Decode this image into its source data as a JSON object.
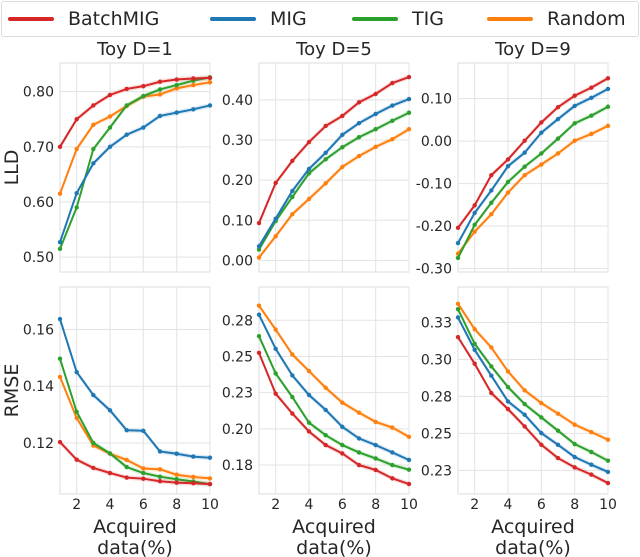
{
  "legend": {
    "placement": "top",
    "items": [
      {
        "label": "BatchMIG",
        "color": "#d62728"
      },
      {
        "label": "MIG",
        "color": "#1f77b4"
      },
      {
        "label": "TIG",
        "color": "#2ca02c"
      },
      {
        "label": "Random",
        "color": "#ff7f0e"
      }
    ]
  },
  "chart_data": [
    {
      "type": "line",
      "title": "Toy D=1",
      "ylabel": "LLD",
      "xlabel": "",
      "x": [
        1,
        2,
        3,
        4,
        5,
        6,
        7,
        8,
        9,
        10
      ],
      "xlim": [
        1,
        10
      ],
      "xticks": [
        2,
        4,
        6,
        8,
        10
      ],
      "xtick_labels": [],
      "ylim": [
        0.473,
        0.852
      ],
      "yticks": [
        0.5,
        0.6,
        0.7,
        0.8
      ],
      "ytick_labels": [
        "0.50",
        "0.60",
        "0.70",
        "0.80"
      ],
      "grid": true,
      "series": [
        {
          "name": "BatchMIG",
          "values": [
            0.7,
            0.75,
            0.775,
            0.794,
            0.805,
            0.81,
            0.818,
            0.822,
            0.824,
            0.825
          ]
        },
        {
          "name": "MIG",
          "values": [
            0.527,
            0.616,
            0.67,
            0.7,
            0.722,
            0.735,
            0.756,
            0.762,
            0.768,
            0.775
          ]
        },
        {
          "name": "TIG",
          "values": [
            0.515,
            0.59,
            0.696,
            0.735,
            0.775,
            0.792,
            0.804,
            0.812,
            0.82,
            0.826
          ]
        },
        {
          "name": "Random",
          "values": [
            0.615,
            0.696,
            0.74,
            0.755,
            0.774,
            0.791,
            0.795,
            0.806,
            0.812,
            0.817
          ]
        }
      ]
    },
    {
      "type": "line",
      "title": "Toy D=5",
      "ylabel": "",
      "xlabel": "",
      "x": [
        1,
        2,
        3,
        4,
        5,
        6,
        7,
        8,
        9,
        10
      ],
      "xlim": [
        1,
        10
      ],
      "xticks": [
        2,
        4,
        6,
        8,
        10
      ],
      "xtick_labels": [],
      "ylim": [
        -0.029,
        0.492
      ],
      "yticks": [
        0,
        0.1,
        0.2,
        0.3,
        0.4
      ],
      "ytick_labels": [
        "0.00",
        "0.10",
        "0.20",
        "0.30",
        "0.40"
      ],
      "grid": true,
      "series": [
        {
          "name": "BatchMIG",
          "values": [
            0.093,
            0.193,
            0.248,
            0.295,
            0.335,
            0.36,
            0.394,
            0.415,
            0.442,
            0.457
          ]
        },
        {
          "name": "MIG",
          "values": [
            0.035,
            0.104,
            0.173,
            0.228,
            0.268,
            0.313,
            0.342,
            0.365,
            0.386,
            0.402
          ]
        },
        {
          "name": "TIG",
          "values": [
            0.027,
            0.098,
            0.158,
            0.217,
            0.252,
            0.282,
            0.307,
            0.327,
            0.348,
            0.368
          ]
        },
        {
          "name": "Random",
          "values": [
            0.007,
            0.06,
            0.115,
            0.153,
            0.192,
            0.233,
            0.26,
            0.283,
            0.302,
            0.327
          ]
        }
      ]
    },
    {
      "type": "line",
      "title": "Toy D=9",
      "ylabel": "",
      "xlabel": "",
      "x": [
        1,
        2,
        3,
        4,
        5,
        6,
        7,
        8,
        9,
        10
      ],
      "xlim": [
        1,
        10
      ],
      "xticks": [
        2,
        4,
        6,
        8,
        10
      ],
      "xtick_labels": [],
      "ylim": [
        -0.308,
        0.184
      ],
      "yticks": [
        -0.3,
        -0.2,
        -0.1,
        0,
        0.1
      ],
      "ytick_labels": [
        "-0.30",
        "-0.20",
        "-0.10",
        "0.00",
        "0.10"
      ],
      "grid": true,
      "series": [
        {
          "name": "BatchMIG",
          "values": [
            -0.204,
            -0.151,
            -0.08,
            -0.043,
            0.001,
            0.044,
            0.08,
            0.107,
            0.126,
            0.148
          ]
        },
        {
          "name": "MIG",
          "values": [
            -0.24,
            -0.169,
            -0.116,
            -0.059,
            -0.027,
            0.02,
            0.052,
            0.083,
            0.102,
            0.123
          ]
        },
        {
          "name": "TIG",
          "values": [
            -0.275,
            -0.197,
            -0.145,
            -0.096,
            -0.06,
            -0.029,
            0.006,
            0.042,
            0.06,
            0.081
          ]
        },
        {
          "name": "Random",
          "values": [
            -0.265,
            -0.213,
            -0.172,
            -0.121,
            -0.08,
            -0.055,
            -0.029,
            0.001,
            0.017,
            0.036
          ]
        }
      ]
    },
    {
      "type": "line",
      "title": "",
      "ylabel": "RMSE",
      "xlabel": "Acquired data(%)",
      "x": [
        1,
        2,
        3,
        4,
        5,
        6,
        7,
        8,
        9,
        10
      ],
      "xlim": [
        1,
        10
      ],
      "xticks": [
        2,
        4,
        6,
        8,
        10
      ],
      "xtick_labels": [
        "2",
        "4",
        "6",
        "8",
        "10"
      ],
      "ylim": [
        0.102,
        0.175
      ],
      "yticks": [
        0.12,
        0.14,
        0.16
      ],
      "ytick_labels": [
        "0.12",
        "0.14",
        "0.16"
      ],
      "grid": true,
      "series": [
        {
          "name": "BatchMIG",
          "values": [
            0.1203,
            0.1141,
            0.1112,
            0.1094,
            0.1078,
            0.1074,
            0.1065,
            0.106,
            0.1058,
            0.1055
          ]
        },
        {
          "name": "MIG",
          "values": [
            0.1637,
            0.145,
            0.1369,
            0.1315,
            0.1245,
            0.1243,
            0.117,
            0.1162,
            0.1152,
            0.1148
          ]
        },
        {
          "name": "TIG",
          "values": [
            0.1497,
            0.131,
            0.12,
            0.1163,
            0.1115,
            0.1094,
            0.1081,
            0.1072,
            0.1064,
            0.1055
          ]
        },
        {
          "name": "Random",
          "values": [
            0.1433,
            0.1288,
            0.1191,
            0.1162,
            0.114,
            0.111,
            0.1107,
            0.1088,
            0.108,
            0.1075
          ]
        }
      ]
    },
    {
      "type": "line",
      "title": "",
      "ylabel": "",
      "xlabel": "Acquired data(%)",
      "x": [
        1,
        2,
        3,
        4,
        5,
        6,
        7,
        8,
        9,
        10
      ],
      "xlim": [
        1,
        10
      ],
      "xticks": [
        2,
        4,
        6,
        8,
        10
      ],
      "xtick_labels": [
        "2",
        "4",
        "6",
        "8",
        "10"
      ],
      "ylim": [
        0.155,
        0.298
      ],
      "yticks": [
        0.175,
        0.2,
        0.225,
        0.25,
        0.275
      ],
      "ytick_labels": [
        "0.18",
        "0.20",
        "0.23",
        "0.25",
        "0.28"
      ],
      "grid": true,
      "series": [
        {
          "name": "BatchMIG",
          "values": [
            0.2525,
            0.2243,
            0.2106,
            0.1982,
            0.1888,
            0.183,
            0.175,
            0.1716,
            0.1658,
            0.1619
          ]
        },
        {
          "name": "MIG",
          "values": [
            0.2789,
            0.2553,
            0.2369,
            0.2234,
            0.2131,
            0.2014,
            0.1934,
            0.1888,
            0.1837,
            0.1785
          ]
        },
        {
          "name": "TIG",
          "values": [
            0.264,
            0.2383,
            0.222,
            0.2043,
            0.1956,
            0.1888,
            0.1837,
            0.1796,
            0.175,
            0.1718
          ]
        },
        {
          "name": "Random",
          "values": [
            0.2851,
            0.2686,
            0.2514,
            0.2399,
            0.2284,
            0.2181,
            0.2112,
            0.2048,
            0.2009,
            0.1945
          ]
        }
      ]
    },
    {
      "type": "line",
      "title": "",
      "ylabel": "",
      "xlabel": "Acquired data(%)",
      "x": [
        1,
        2,
        3,
        4,
        5,
        6,
        7,
        8,
        9,
        10
      ],
      "xlim": [
        1,
        10
      ],
      "xticks": [
        2,
        4,
        6,
        8,
        10
      ],
      "xtick_labels": [
        "2",
        "4",
        "6",
        "8",
        "10"
      ],
      "ylim": [
        0.209,
        0.349
      ],
      "yticks": [
        0.225,
        0.25,
        0.275,
        0.3,
        0.325
      ],
      "ytick_labels": [
        "0.23",
        "0.25",
        "0.28",
        "0.30",
        "0.33"
      ],
      "grid": true,
      "series": [
        {
          "name": "BatchMIG",
          "values": [
            0.3151,
            0.2971,
            0.2773,
            0.2664,
            0.2547,
            0.2423,
            0.2333,
            0.227,
            0.2221,
            0.2164
          ]
        },
        {
          "name": "MIG",
          "values": [
            0.3284,
            0.3065,
            0.289,
            0.2716,
            0.2626,
            0.2502,
            0.2423,
            0.234,
            0.2288,
            0.2239
          ]
        },
        {
          "name": "TIG",
          "values": [
            0.334,
            0.3106,
            0.2953,
            0.2813,
            0.2698,
            0.2608,
            0.2518,
            0.2428,
            0.2374,
            0.2315
          ]
        },
        {
          "name": "Random",
          "values": [
            0.3376,
            0.3205,
            0.3081,
            0.2919,
            0.2791,
            0.2705,
            0.2633,
            0.2559,
            0.2509,
            0.2457
          ]
        }
      ]
    }
  ]
}
